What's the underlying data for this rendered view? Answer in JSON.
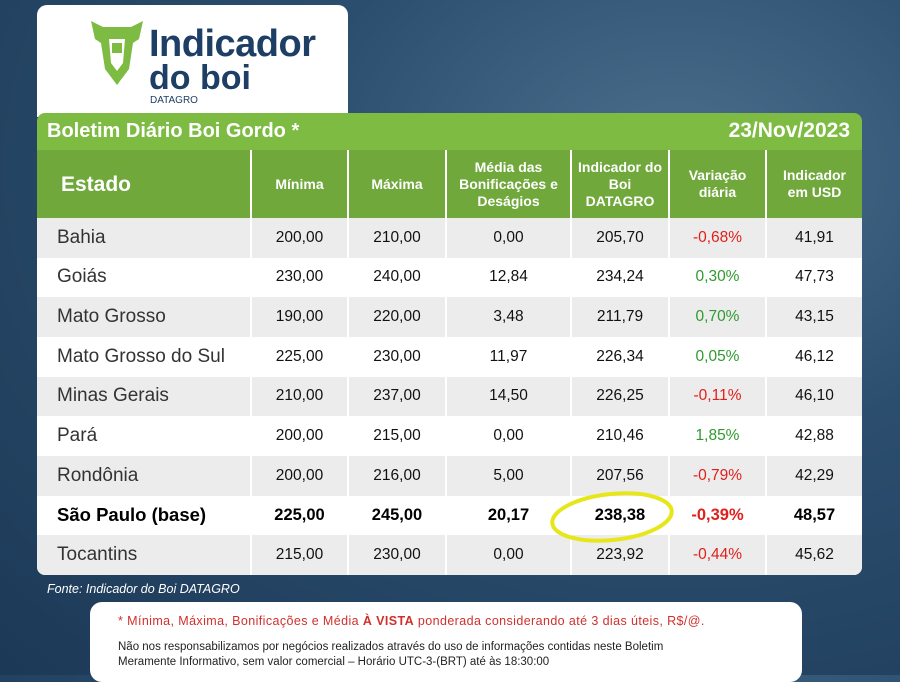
{
  "logo": {
    "line1": "Indicador",
    "line2": "do boi",
    "brand": "DATAGRO"
  },
  "header": {
    "title": "Boletim Diário Boi Gordo *",
    "date": "23/Nov/2023"
  },
  "table": {
    "columns": [
      "Estado",
      "Mínima",
      "Máxima",
      "Média das Bonificações e Deságios",
      "Indicador do Boi DATAGRO",
      "Variação diária",
      "Indicador em USD"
    ],
    "rows": [
      {
        "cells": [
          "Bahia",
          "200,00",
          "210,00",
          "0,00",
          "205,70",
          "-0,68%",
          "41,91"
        ]
      },
      {
        "cells": [
          "Goiás",
          "230,00",
          "240,00",
          "12,84",
          "234,24",
          "0,30%",
          "47,73"
        ]
      },
      {
        "cells": [
          "Mato Grosso",
          "190,00",
          "220,00",
          "3,48",
          "211,79",
          "0,70%",
          "43,15"
        ]
      },
      {
        "cells": [
          "Mato Grosso do Sul",
          "225,00",
          "230,00",
          "11,97",
          "226,34",
          "0,05%",
          "46,12"
        ]
      },
      {
        "cells": [
          "Minas Gerais",
          "210,00",
          "237,00",
          "14,50",
          "226,25",
          "-0,11%",
          "46,10"
        ]
      },
      {
        "cells": [
          "Pará",
          "200,00",
          "215,00",
          "0,00",
          "210,46",
          "1,85%",
          "42,88"
        ]
      },
      {
        "cells": [
          "Rondônia",
          "200,00",
          "216,00",
          "5,00",
          "207,56",
          "-0,79%",
          "42,29"
        ]
      },
      {
        "cells": [
          "São Paulo (base)",
          "225,00",
          "245,00",
          "20,17",
          "238,38",
          "-0,39%",
          "48,57"
        ],
        "bold": true
      },
      {
        "cells": [
          "Tocantins",
          "215,00",
          "230,00",
          "0,00",
          "223,92",
          "-0,44%",
          "45,62"
        ]
      }
    ]
  },
  "source": "Fonte: Indicador do Boi DATAGRO",
  "footnote": {
    "before": "* Mínima, Máxima, Bonificações e Média ",
    "emphasis": "À VISTA",
    "after": " ponderada considerando até 3 dias úteis, R$/@."
  },
  "disclaimer": [
    "Não nos responsabilizamos por negócios realizados através do uso de informações contidas neste Boletim",
    "Meramente Informativo, sem valor comercial – Horário UTC-3-(BRT) até às 18:30:00"
  ]
}
